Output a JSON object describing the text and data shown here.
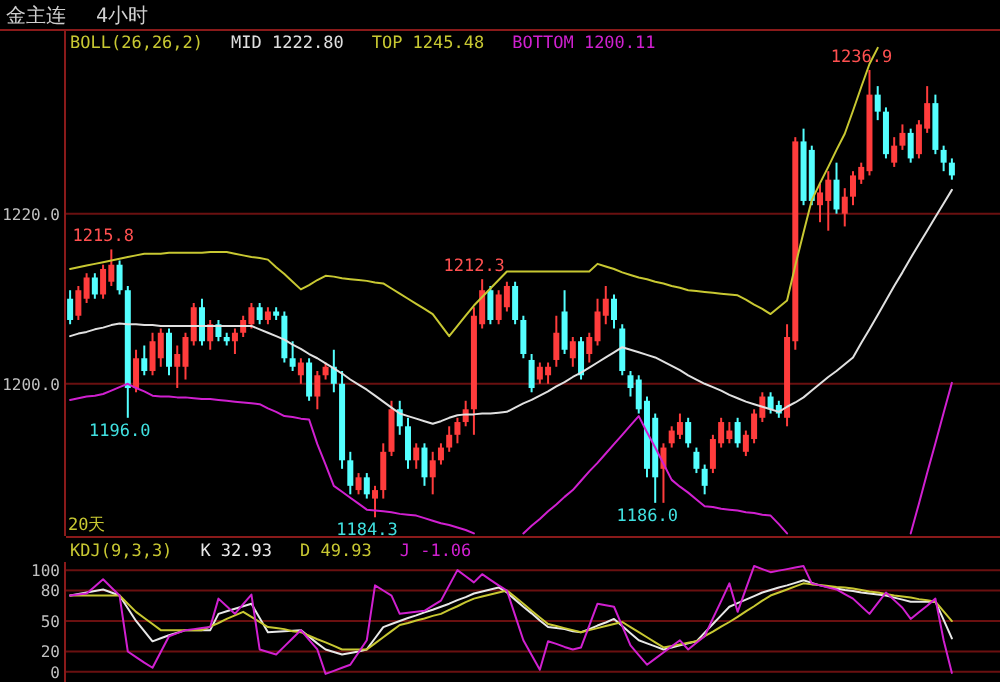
{
  "chart_data": [
    {
      "type": "candlestick",
      "title": "金主连",
      "subtitle": "4小时",
      "legend_title": "BOLL(26,26,2)",
      "grid": "y",
      "tick_labels": "y",
      "ylim": [
        1182.1,
        1241.6
      ],
      "yticks": [
        {
          "value": 1200,
          "label": "1200.0"
        },
        {
          "value": 1220,
          "label": "1220.0"
        }
      ],
      "categories": [
        null,
        null,
        null,
        null,
        null,
        null,
        null,
        null,
        null,
        null,
        null,
        null,
        null,
        null,
        null,
        null,
        null,
        null,
        null,
        null,
        null,
        null,
        null,
        null,
        null,
        null,
        null,
        null,
        null,
        null,
        null,
        null,
        null,
        null,
        null,
        null,
        null,
        null,
        null,
        null,
        null,
        null,
        null,
        null,
        null,
        null,
        null,
        null,
        null,
        null,
        null,
        null,
        null,
        null,
        null,
        null,
        null,
        null,
        null,
        null,
        null,
        null,
        null,
        null,
        null,
        null,
        null,
        null,
        null,
        null,
        null,
        null,
        null,
        null,
        null,
        null,
        null,
        null,
        null,
        null,
        null,
        null,
        null,
        null,
        null,
        null,
        null,
        null,
        null,
        null,
        null,
        null,
        null,
        null,
        null,
        null,
        null,
        null,
        null,
        null,
        null,
        null,
        null,
        null,
        null,
        null,
        null,
        null
      ],
      "ohlc": [
        [
          1210,
          1211,
          1207,
          1207.5
        ],
        [
          1208,
          1211.5,
          1207.5,
          1211
        ],
        [
          1210,
          1213,
          1209.5,
          1212.5
        ],
        [
          1212.5,
          1213,
          1210,
          1210.5
        ],
        [
          1210.5,
          1214,
          1210,
          1213.5
        ],
        [
          1212,
          1215.8,
          1211.5,
          1214
        ],
        [
          1214,
          1214.5,
          1210.5,
          1211
        ],
        [
          1211,
          1211.5,
          1196.0,
          1199.5
        ],
        [
          1199.5,
          1204,
          1199,
          1203
        ],
        [
          1203,
          1204.5,
          1201,
          1201.5
        ],
        [
          1201.5,
          1206,
          1201,
          1205
        ],
        [
          1203,
          1206.5,
          1202,
          1206
        ],
        [
          1206,
          1206.5,
          1201,
          1202
        ],
        [
          1202,
          1204.5,
          1199.5,
          1203.5
        ],
        [
          1202,
          1206,
          1200.5,
          1205.5
        ],
        [
          1205,
          1209.5,
          1204.5,
          1209
        ],
        [
          1209,
          1210,
          1204.5,
          1205
        ],
        [
          1205,
          1207.5,
          1204,
          1207
        ],
        [
          1207,
          1207.5,
          1205,
          1205.5
        ],
        [
          1205.5,
          1206,
          1204.5,
          1205
        ],
        [
          1205,
          1206.5,
          1203.5,
          1206
        ],
        [
          1206,
          1208,
          1205.5,
          1207.5
        ],
        [
          1207,
          1209.5,
          1206.5,
          1209
        ],
        [
          1209,
          1209.5,
          1207,
          1207.5
        ],
        [
          1207.5,
          1209,
          1207,
          1208.5
        ],
        [
          1208.5,
          1209,
          1207.5,
          1208
        ],
        [
          1208,
          1208.5,
          1202.5,
          1203
        ],
        [
          1203,
          1205,
          1201.5,
          1202
        ],
        [
          1201,
          1203,
          1200,
          1202.5
        ],
        [
          1202.5,
          1203,
          1198,
          1198.5
        ],
        [
          1198.5,
          1201.5,
          1197,
          1201
        ],
        [
          1201,
          1202.5,
          1200.5,
          1202
        ],
        [
          1202,
          1204,
          1199,
          1200
        ],
        [
          1200,
          1201.5,
          1190,
          1191
        ],
        [
          1191,
          1192,
          1187,
          1188
        ],
        [
          1187.5,
          1189.5,
          1187,
          1189
        ],
        [
          1189,
          1189.5,
          1186.5,
          1187
        ],
        [
          1186.5,
          1188,
          1184.3,
          1187.5
        ],
        [
          1187.5,
          1193,
          1186.5,
          1192
        ],
        [
          1192,
          1198,
          1191.5,
          1197
        ],
        [
          1197,
          1198,
          1194,
          1195
        ],
        [
          1195,
          1196,
          1190,
          1191
        ],
        [
          1191,
          1193,
          1190,
          1192.5
        ],
        [
          1192.5,
          1193,
          1188,
          1189
        ],
        [
          1189,
          1192,
          1187,
          1191
        ],
        [
          1191,
          1193,
          1190.5,
          1192.5
        ],
        [
          1192.5,
          1195,
          1192,
          1194
        ],
        [
          1194,
          1196,
          1193,
          1195.5
        ],
        [
          1195.5,
          1198,
          1195,
          1197
        ],
        [
          1197,
          1209,
          1194,
          1208
        ],
        [
          1207,
          1212.3,
          1206.5,
          1211
        ],
        [
          1211,
          1211.5,
          1207,
          1207.5
        ],
        [
          1207.5,
          1211,
          1207,
          1210.5
        ],
        [
          1209,
          1212,
          1208.5,
          1211.5
        ],
        [
          1211.5,
          1212,
          1207,
          1207.5
        ],
        [
          1207.5,
          1208,
          1203,
          1203.5
        ],
        [
          1202.8,
          1203.5,
          1199,
          1199.5
        ],
        [
          1200.5,
          1202.5,
          1200,
          1202
        ],
        [
          1201,
          1202.5,
          1200,
          1202
        ],
        [
          1202.8,
          1208,
          1202,
          1206
        ],
        [
          1208.5,
          1211,
          1203.5,
          1204
        ],
        [
          1203,
          1205.5,
          1202,
          1205
        ],
        [
          1205,
          1205.5,
          1200.5,
          1201
        ],
        [
          1203.5,
          1206,
          1202.5,
          1205.5
        ],
        [
          1205,
          1210,
          1204.5,
          1208.5
        ],
        [
          1208,
          1211.5,
          1207,
          1210
        ],
        [
          1210,
          1210.5,
          1206.5,
          1207.5
        ],
        [
          1206.5,
          1207,
          1201,
          1201.5
        ],
        [
          1201,
          1201.5,
          1198.5,
          1199.5
        ],
        [
          1200.5,
          1201,
          1196.5,
          1197
        ],
        [
          1198,
          1198.5,
          1189,
          1190
        ],
        [
          1196,
          1196.5,
          1186.0,
          1189
        ],
        [
          1190,
          1193,
          1186,
          1192.5
        ],
        [
          1193,
          1195,
          1192.5,
          1194.5
        ],
        [
          1194,
          1196.5,
          1193.5,
          1195.5
        ],
        [
          1195.5,
          1196,
          1192.5,
          1193
        ],
        [
          1192,
          1192.5,
          1189.5,
          1190
        ],
        [
          1190,
          1190.5,
          1187,
          1188
        ],
        [
          1190,
          1194,
          1189.5,
          1193.5
        ],
        [
          1193,
          1196,
          1192.5,
          1195.5
        ],
        [
          1193.5,
          1195.5,
          1193,
          1194.5
        ],
        [
          1195.5,
          1196,
          1192.5,
          1193
        ],
        [
          1192,
          1194.5,
          1191.5,
          1194
        ],
        [
          1193.5,
          1197,
          1193,
          1196.5
        ],
        [
          1196,
          1199,
          1195.5,
          1198.5
        ],
        [
          1198.5,
          1199,
          1196.5,
          1197
        ],
        [
          1197.5,
          1198,
          1196,
          1196.5
        ],
        [
          1196,
          1207,
          1195,
          1205.5
        ],
        [
          1205,
          1229,
          1204,
          1228.5
        ],
        [
          1228.5,
          1230,
          1221,
          1221.5
        ],
        [
          1227.5,
          1228,
          1221,
          1221.5
        ],
        [
          1221,
          1223.5,
          1219,
          1222.5
        ],
        [
          1221.5,
          1225,
          1218,
          1224
        ],
        [
          1224,
          1226,
          1220,
          1220.5
        ],
        [
          1220,
          1223,
          1218.5,
          1222
        ],
        [
          1222,
          1225,
          1221,
          1224.5
        ],
        [
          1224,
          1226,
          1223.5,
          1225.5
        ],
        [
          1225,
          1236.9,
          1224.5,
          1234
        ],
        [
          1234,
          1235,
          1231,
          1232
        ],
        [
          1232,
          1232.5,
          1226.5,
          1227
        ],
        [
          1226,
          1229,
          1225.5,
          1228
        ],
        [
          1228,
          1230.5,
          1227.5,
          1229.5
        ],
        [
          1229.5,
          1230,
          1226,
          1226.5
        ],
        [
          1227,
          1231,
          1226.5,
          1230.5
        ],
        [
          1230,
          1235,
          1229.5,
          1233
        ],
        [
          1233,
          1234,
          1227,
          1227.5
        ],
        [
          1227.5,
          1228,
          1225,
          1226
        ],
        [
          1226,
          1226.5,
          1224,
          1224.5
        ]
      ],
      "series": [
        {
          "name": "MID 1222.80",
          "type": "line",
          "color": "#e0e0e0",
          "values": [
            1205.6,
            1205.9,
            1206.1,
            1206.4,
            1206.6,
            1206.9,
            1207.1,
            1207.0,
            1207.0,
            1206.9,
            1206.9,
            1206.8,
            1206.8,
            1206.8,
            1206.8,
            1206.8,
            1206.8,
            1206.8,
            1206.8,
            1206.8,
            1206.8,
            1206.8,
            1206.8,
            1206.4,
            1206.0,
            1205.6,
            1205.2,
            1204.6,
            1204.1,
            1203.5,
            1203.0,
            1202.4,
            1201.8,
            1201.2,
            1200.5,
            1199.9,
            1199.3,
            1198.6,
            1197.9,
            1197.2,
            1196.5,
            1196.2,
            1195.9,
            1195.6,
            1195.3,
            1195.6,
            1196.0,
            1196.3,
            1196.4,
            1196.4,
            1196.5,
            1196.5,
            1196.6,
            1196.7,
            1197.2,
            1197.7,
            1198.1,
            1198.6,
            1199.1,
            1199.7,
            1200.2,
            1200.8,
            1201.3,
            1201.9,
            1202.5,
            1203.1,
            1203.7,
            1204.3,
            1204.0,
            1203.7,
            1203.4,
            1203.1,
            1202.6,
            1202.1,
            1201.6,
            1201.0,
            1200.5,
            1200.0,
            1199.6,
            1199.2,
            1198.7,
            1198.3,
            1197.9,
            1197.6,
            1197.3,
            1197.0,
            1196.7,
            1197.3,
            1197.8,
            1198.4,
            1199.2,
            1200.0,
            1200.8,
            1201.5,
            1202.3,
            1203.1,
            1204.8,
            1206.4,
            1208.1,
            1209.8,
            1211.5,
            1213.1,
            1214.8,
            1216.4,
            1218.0,
            1219.6,
            1221.2,
            1222.8
          ]
        },
        {
          "name": "TOP 1245.48",
          "type": "line",
          "color": "#c8c832",
          "values": [
            1213.5,
            1213.7,
            1213.9,
            1214.1,
            1214.3,
            1214.5,
            1214.7,
            1214.9,
            1215.1,
            1215.3,
            1215.3,
            1215.3,
            1215.4,
            1215.4,
            1215.4,
            1215.4,
            1215.4,
            1215.5,
            1215.5,
            1215.5,
            1215.3,
            1215.1,
            1214.9,
            1214.8,
            1214.6,
            1213.7,
            1212.9,
            1212.0,
            1211.1,
            1211.6,
            1212.2,
            1212.7,
            1212.6,
            1212.4,
            1212.3,
            1212.2,
            1212.1,
            1211.9,
            1211.8,
            1211.2,
            1210.6,
            1210.0,
            1209.4,
            1208.8,
            1208.2,
            1206.9,
            1205.6,
            1206.8,
            1208.0,
            1209.2,
            1210.2,
            1211.2,
            1212.2,
            1213.2,
            1213.2,
            1213.2,
            1213.2,
            1213.2,
            1213.2,
            1213.2,
            1213.2,
            1213.2,
            1213.2,
            1213.2,
            1214.1,
            1213.8,
            1213.5,
            1213.1,
            1212.8,
            1212.5,
            1212.3,
            1212.0,
            1211.8,
            1211.5,
            1211.3,
            1211.0,
            1210.9,
            1210.8,
            1210.7,
            1210.6,
            1210.5,
            1210.4,
            1209.9,
            1209.3,
            1208.8,
            1208.2,
            1209.0,
            1209.8,
            1213.9,
            1217.8,
            1221.6,
            1223.6,
            1225.5,
            1227.5,
            1229.4,
            1232.1,
            1234.9,
            1237.6,
            1239.5,
            null,
            null,
            null,
            null,
            null,
            null,
            null,
            null,
            null
          ]
        },
        {
          "name": "BOTTOM 1200.11",
          "type": "line",
          "color": "#d020d0",
          "values": [
            1198.1,
            1198.3,
            1198.5,
            1198.6,
            1198.8,
            1199.2,
            1199.6,
            1200.0,
            1199.5,
            1199.1,
            1198.6,
            1198.5,
            1198.5,
            1198.4,
            1198.4,
            1198.3,
            1198.2,
            1198.2,
            1198.1,
            1198.0,
            1197.9,
            1197.8,
            1197.7,
            1197.6,
            1197.1,
            1196.7,
            1196.2,
            1196.1,
            1195.9,
            1195.8,
            1192.9,
            1190.5,
            1188.0,
            1187.3,
            1186.6,
            1185.9,
            1185.2,
            1185.1,
            1185.0,
            1184.9,
            1184.7,
            1184.6,
            1184.5,
            1184.2,
            1183.9,
            1183.6,
            1183.4,
            1183.1,
            1182.8,
            1182.4,
            null,
            null,
            null,
            null,
            null,
            1182.4,
            1183.3,
            1184.1,
            1185.0,
            1185.8,
            1186.7,
            1187.5,
            1188.6,
            1189.7,
            1190.7,
            1191.8,
            1192.9,
            1194.0,
            1195.1,
            1196.2,
            1194.3,
            1192.5,
            1190.6,
            1188.7,
            1187.9,
            1187.2,
            1186.4,
            1185.6,
            1185.5,
            1185.3,
            1185.2,
            1185.1,
            1184.9,
            1184.8,
            1184.6,
            1184.5,
            1183.5,
            1182.4,
            null,
            null,
            null,
            null,
            null,
            null,
            null,
            null,
            null,
            null,
            null,
            null,
            null,
            null,
            1182.4,
            1185.9,
            1189.5,
            1193.0,
            1196.6,
            1200.11
          ]
        }
      ],
      "annotations": [
        "20天",
        {
          "text": "1215.8",
          "y": 1215.8
        },
        {
          "text": "1196.0",
          "y": 1196.0
        },
        {
          "text": "1184.3",
          "y": 1184.3
        },
        {
          "text": "1212.3",
          "y": 1212.3
        },
        {
          "text": "1186.0",
          "y": 1186.0
        },
        {
          "text": "1236.9",
          "y": 1236.9
        }
      ]
    },
    {
      "type": "line",
      "legend_title": "KDJ(9,3,3)",
      "grid": "y",
      "tick_labels": "y",
      "ylim": [
        -10,
        108
      ],
      "yticks": [
        0,
        20,
        50,
        80,
        100
      ],
      "categories": [
        null,
        null,
        null,
        null,
        null,
        null,
        null,
        null,
        null,
        null,
        null,
        null,
        null,
        null,
        null,
        null,
        null,
        null,
        null,
        null,
        null,
        null,
        null,
        null,
        null,
        null,
        null,
        null,
        null,
        null,
        null,
        null,
        null,
        null,
        null,
        null,
        null,
        null,
        null,
        null,
        null,
        null,
        null,
        null,
        null,
        null,
        null,
        null,
        null,
        null,
        null,
        null,
        null,
        null,
        null,
        null,
        null,
        null,
        null,
        null,
        null,
        null,
        null,
        null,
        null,
        null,
        null,
        null,
        null,
        null,
        null,
        null,
        null,
        null,
        null,
        null,
        null,
        null,
        null,
        null,
        null,
        null,
        null,
        null,
        null,
        null,
        null,
        null,
        null,
        null,
        null,
        null,
        null,
        null,
        null,
        null,
        null,
        null,
        null,
        null,
        null,
        null,
        null,
        null,
        null,
        null,
        null,
        null
      ],
      "series": [
        {
          "name": "K 32.93",
          "color": "#e8e8e8",
          "values": [
            75,
            76.5,
            78,
            79.5,
            81,
            78,
            75,
            62.5,
            50,
            40,
            30,
            33,
            36,
            38.5,
            41,
            41,
            41,
            41,
            57,
            59.5,
            62,
            64.5,
            67,
            53,
            39,
            39.5,
            40,
            40.5,
            41,
            34.5,
            28,
            22,
            19.5,
            17,
            18.5,
            20,
            22,
            33,
            44,
            47,
            50,
            53,
            55.5,
            58.5,
            61,
            64,
            67,
            70.5,
            73.5,
            77,
            79,
            81,
            83,
            78,
            71,
            64,
            57.5,
            50.5,
            44,
            43,
            42,
            40,
            39,
            42,
            45.5,
            48.5,
            52,
            45,
            38,
            31,
            28,
            25,
            22,
            24,
            26,
            28,
            30,
            38.5,
            47,
            55.5,
            64,
            67.5,
            71,
            74.5,
            78,
            80.5,
            83,
            85,
            87.5,
            90,
            87.5,
            85,
            83.5,
            82,
            80.5,
            79.5,
            78,
            77,
            76,
            75,
            73,
            71,
            69,
            69,
            69,
            69,
            51,
            32.93
          ]
        },
        {
          "name": "D 49.93",
          "color": "#c8c832",
          "values": [
            75,
            75,
            75,
            75,
            75,
            75,
            75,
            67,
            59,
            53,
            47,
            41,
            41,
            41,
            41,
            41,
            41,
            44.5,
            48,
            52,
            55.5,
            59,
            54,
            49,
            44,
            43,
            42,
            40,
            39,
            35.5,
            32,
            29,
            25.5,
            22,
            22,
            22,
            22,
            28,
            34,
            40,
            46,
            48,
            50.5,
            52.5,
            55,
            57,
            61,
            64.5,
            68.5,
            72,
            74,
            76,
            78,
            80,
            73.5,
            67,
            60,
            53.5,
            47,
            45,
            43,
            41,
            39,
            41,
            43,
            45,
            47,
            49,
            44,
            39,
            34,
            29,
            24,
            25.5,
            27,
            28.5,
            30,
            35,
            39.5,
            44.5,
            49,
            54,
            59.5,
            64.5,
            70,
            75,
            78,
            81,
            84,
            87,
            86,
            85.5,
            84.5,
            83.5,
            83,
            82,
            80.5,
            79,
            78,
            76.5,
            75,
            74,
            73,
            71.5,
            70.5,
            69,
            59.5,
            49.93
          ]
        },
        {
          "name": "J -1.06",
          "color": "#d020d0",
          "values": [
            75,
            76,
            77,
            84,
            91,
            83,
            75,
            20,
            14.5,
            9,
            4,
            19.5,
            35,
            38,
            41,
            42,
            43,
            44,
            72,
            64.5,
            57,
            66.5,
            76,
            22,
            19.5,
            17,
            25,
            33,
            41,
            31.5,
            22,
            -2,
            1,
            4,
            7,
            19,
            31,
            85,
            80,
            75,
            57,
            58,
            59,
            60,
            65,
            70,
            85,
            100,
            94,
            88,
            96,
            90.5,
            85,
            80,
            55.5,
            31,
            16.5,
            2,
            30,
            27.5,
            24.5,
            22,
            24,
            45.5,
            67,
            65.5,
            64,
            45,
            26,
            16.5,
            7,
            13,
            19,
            25,
            31,
            22,
            28.5,
            35,
            52.5,
            69.5,
            87,
            59,
            81.5,
            104,
            101,
            98,
            99.5,
            101,
            102.5,
            104,
            87,
            85,
            83,
            81,
            76.5,
            72,
            64.5,
            57,
            67.5,
            78,
            70.5,
            63,
            52,
            58.5,
            65,
            72,
            31,
            -1.06
          ]
        }
      ]
    }
  ]
}
